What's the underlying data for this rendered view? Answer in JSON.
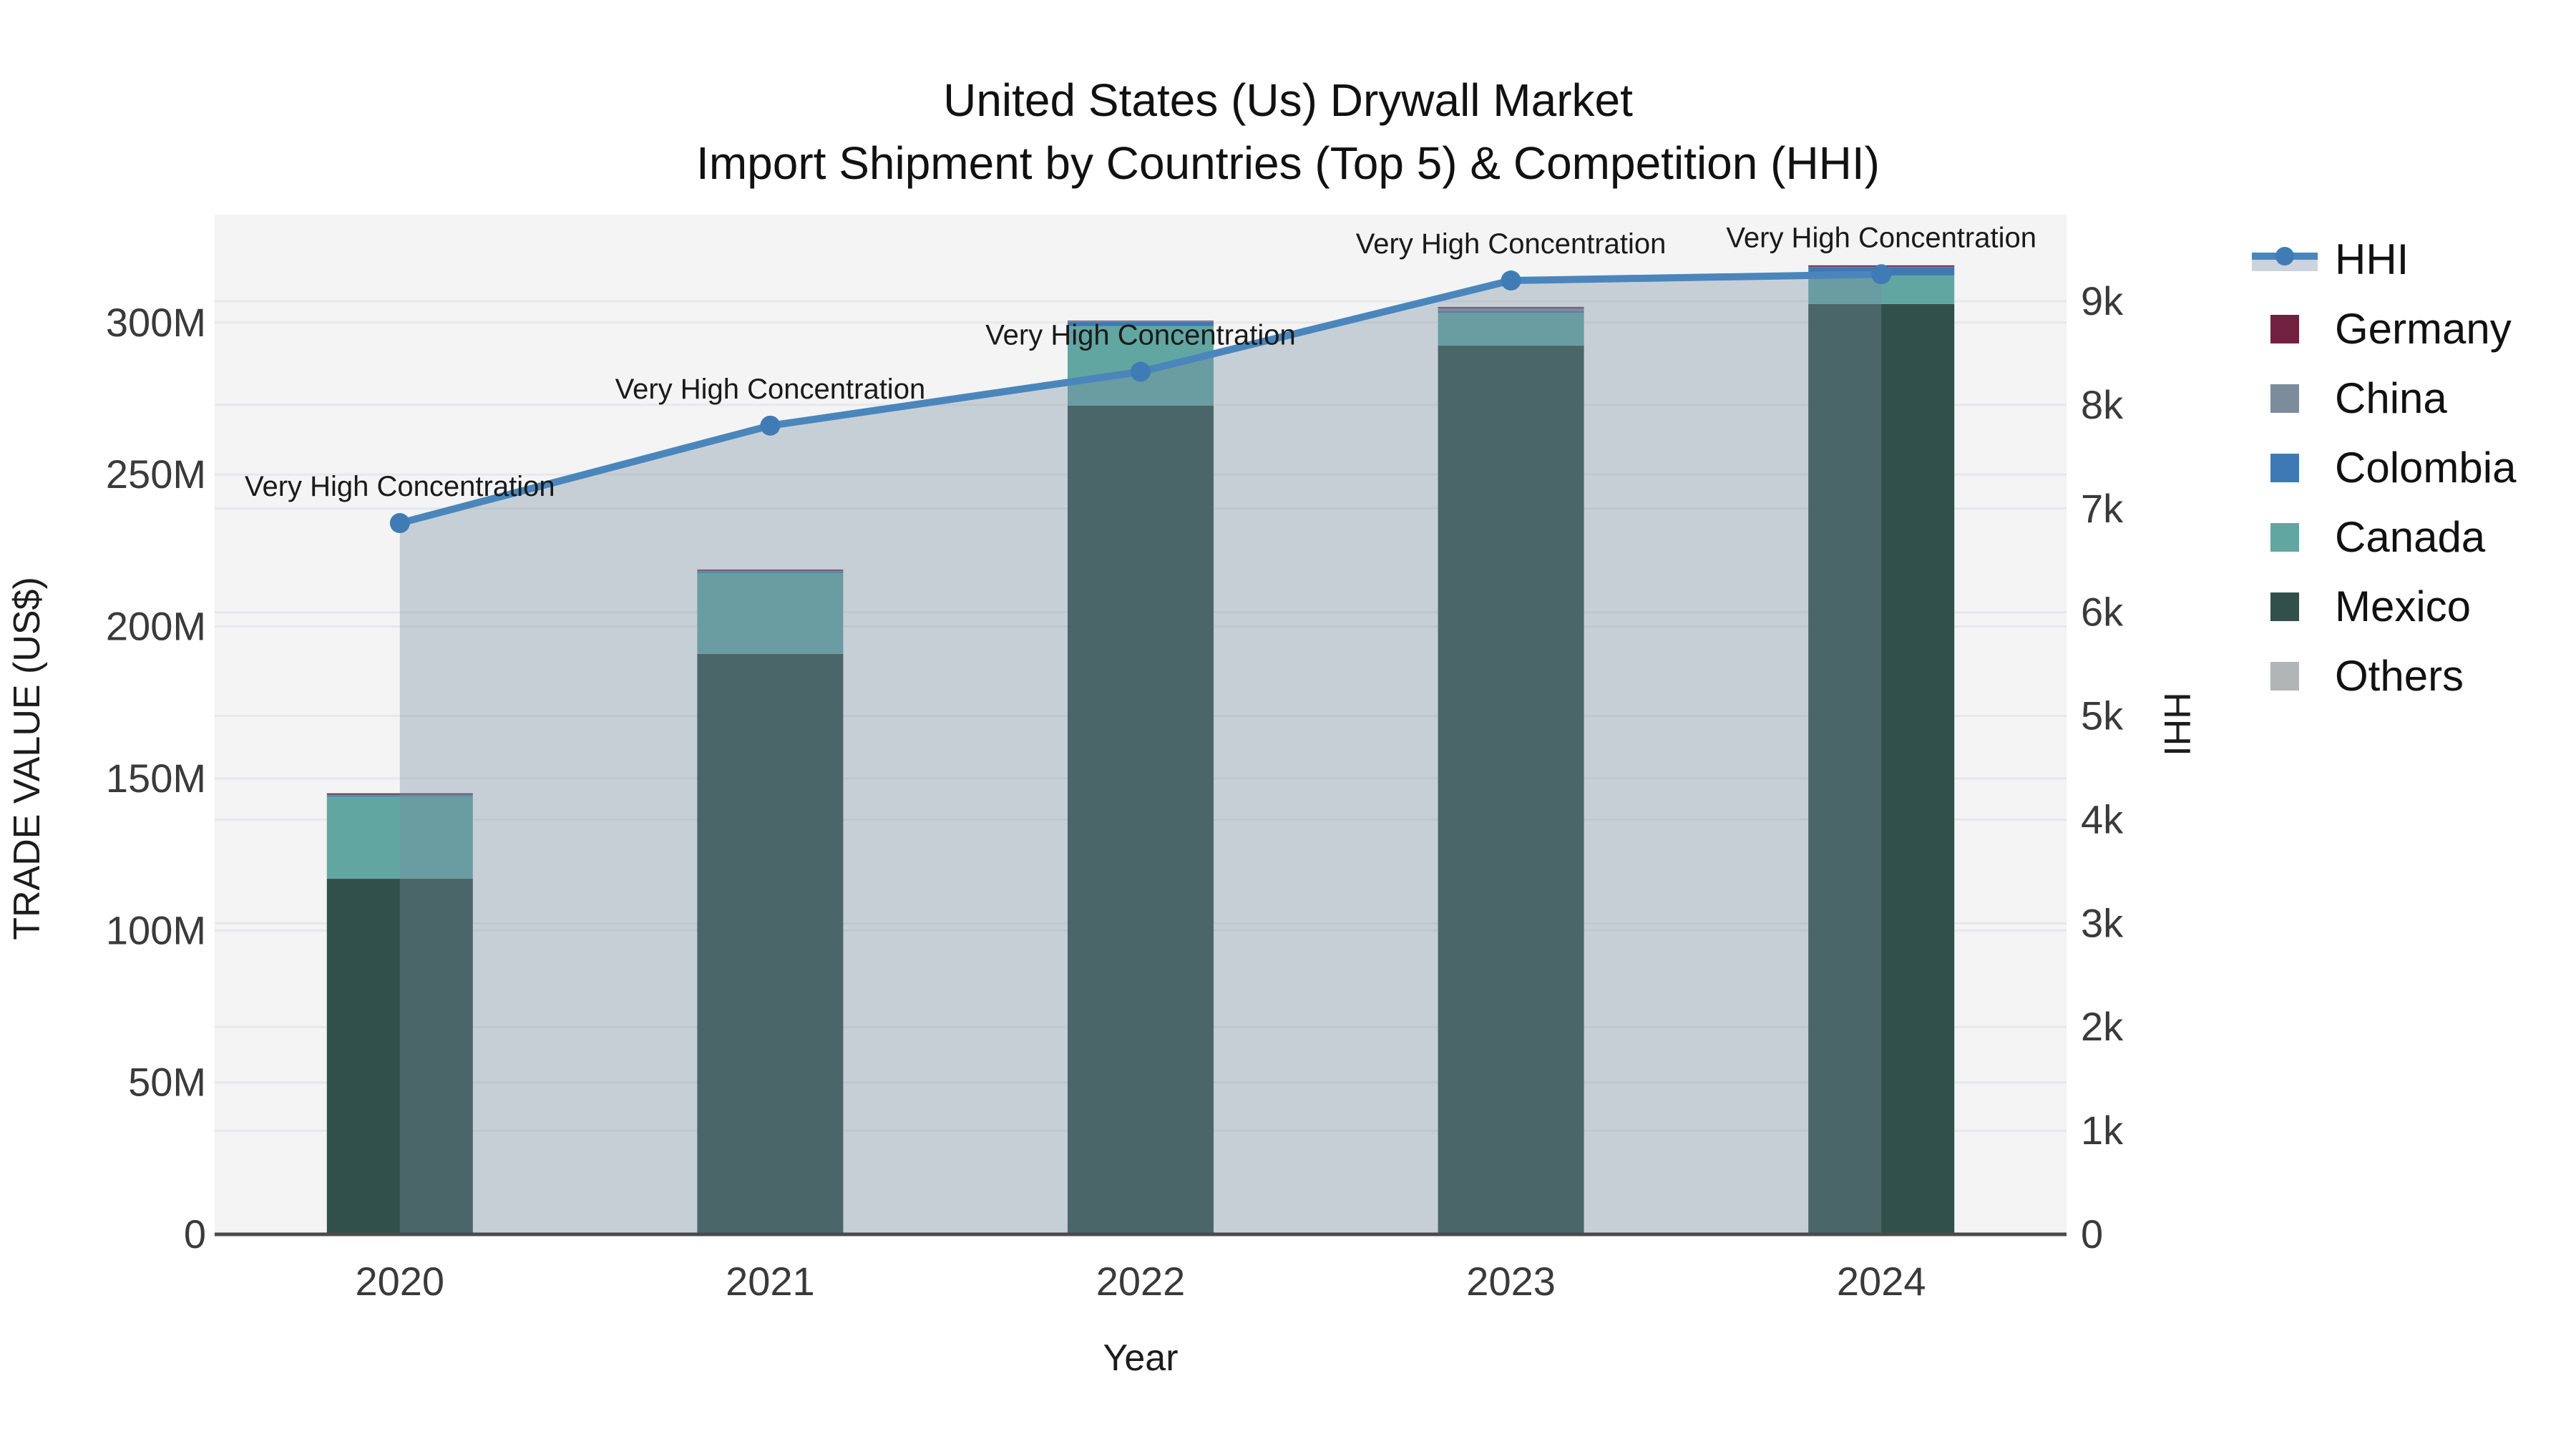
{
  "title": {
    "line1": "United States (Us) Drywall Market",
    "line2": "Import Shipment by Countries (Top 5) & Competition (HHI)"
  },
  "axes": {
    "x": {
      "title": "Year",
      "categories": [
        "2020",
        "2021",
        "2022",
        "2023",
        "2024"
      ]
    },
    "y_left": {
      "title": "TRADE VALUE (US$)",
      "tick_step": 50,
      "tick_count": 7,
      "tick_suffix": "M",
      "max_value": 335.5
    },
    "y_right": {
      "title": "HHI",
      "tick_step": 1000,
      "tick_count": 10,
      "tick_suffix": "k",
      "max_value": 9835
    }
  },
  "legend": {
    "items": [
      {
        "label": "HHI",
        "kind": "line",
        "color": "#4a86bb",
        "band": "#ccd3dd",
        "dot": "#3f7cb6"
      },
      {
        "label": "Germany",
        "kind": "swatch",
        "color": "#712040"
      },
      {
        "label": "China",
        "kind": "swatch",
        "color": "#7d8c9c"
      },
      {
        "label": "Colombia",
        "kind": "swatch",
        "color": "#3e79b5"
      },
      {
        "label": "Canada",
        "kind": "swatch",
        "color": "#62a6a2"
      },
      {
        "label": "Mexico",
        "kind": "swatch",
        "color": "#31504a"
      },
      {
        "label": "Others",
        "kind": "swatch",
        "color": "#b1b5b5"
      }
    ]
  },
  "chart_data": {
    "type": "bar+line",
    "title": "United States (Us) Drywall Market — Import Shipment by Countries (Top 5) & Competition (HHI)",
    "categories": [
      "2020",
      "2021",
      "2022",
      "2023",
      "2024"
    ],
    "bar_unit": "Trade value (US$, millions)",
    "stack_series": [
      {
        "name": "Mexico",
        "color": "#31504a",
        "values": [
          117.0,
          191.0,
          272.7,
          292.4,
          306.1
        ]
      },
      {
        "name": "Canada",
        "color": "#62a6a2",
        "values": [
          27.1,
          26.5,
          26.1,
          10.8,
          9.4
        ]
      },
      {
        "name": "Colombia",
        "color": "#3e79b5",
        "values": [
          0.4,
          0.5,
          1.4,
          0.6,
          2.7
        ]
      },
      {
        "name": "China",
        "color": "#7d8c9c",
        "values": [
          0.2,
          0.3,
          0.2,
          0.9,
          0.2
        ]
      },
      {
        "name": "Germany",
        "color": "#712040",
        "values": [
          0.4,
          0.4,
          0.2,
          0.4,
          0.4
        ]
      },
      {
        "name": "Others",
        "color": "#b1b5b5",
        "values": [
          0.1,
          0.1,
          0.1,
          0.1,
          0.1
        ]
      }
    ],
    "line_series": {
      "name": "HHI",
      "values": [
        6860,
        7800,
        8320,
        9200,
        9260
      ],
      "color": "#4a86bb",
      "marker_color": "#3f7cb6",
      "area_fill_color": "rgba(120,140,160,0.36)"
    },
    "annotations": [
      {
        "x": "2020",
        "text": "Very High Concentration"
      },
      {
        "x": "2021",
        "text": "Very High Concentration"
      },
      {
        "x": "2022",
        "text": "Very High Concentration"
      },
      {
        "x": "2023",
        "text": "Very High Concentration"
      },
      {
        "x": "2024",
        "text": "Very High Concentration"
      }
    ],
    "y_left_range": [
      0,
      335.5
    ],
    "y_right_range": [
      0,
      9835
    ],
    "grid": true,
    "legend_position": "right"
  },
  "colors": {
    "page_bg": "#ffffff",
    "plot_bg": "#f4f4f5",
    "grid": "#e7e8ea",
    "axis_line": "#4a4a4a",
    "tick_text": "#3a3a3a",
    "annotation_text": "#1a1a1a"
  }
}
